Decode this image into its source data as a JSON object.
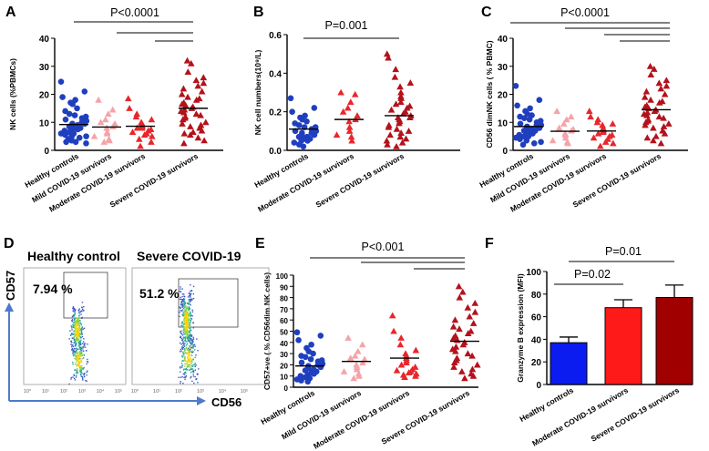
{
  "colors": {
    "healthy": "#1f3fbf",
    "mild": "#f4a3a8",
    "moderate": "#e8262b",
    "severe": "#b3121b",
    "bar_blue": "#0a1cf0",
    "bar_red": "#ff1a1a",
    "bar_dark": "#a00000",
    "axis": "#000000",
    "arrow": "#4f79c9"
  },
  "chart_data": [
    {
      "panel": "A",
      "type": "scatter",
      "ylabel": "NK cells (%PBMCs)",
      "ylim": [
        0,
        40
      ],
      "yticks": [
        "0",
        "10",
        "20",
        "30",
        "40"
      ],
      "categories": [
        "Healthy controls",
        "Mild COVID-19 survivors",
        "Moderate COVID-19 survivors",
        "Severe COVID-19 survivors"
      ],
      "markers": [
        "circle",
        "triangle",
        "triangle",
        "triangle"
      ],
      "means": [
        9.2,
        8.3,
        8.6,
        15.0
      ],
      "series": [
        {
          "name": "Healthy controls",
          "values": [
            24.5,
            21,
            19,
            18,
            17,
            16.5,
            15,
            14,
            13,
            12.5,
            12,
            11.5,
            11,
            10.5,
            10,
            9.5,
            9.5,
            9,
            9,
            8.5,
            8,
            8,
            7.5,
            7,
            7,
            6.5,
            6,
            6,
            5.5,
            5,
            5,
            4.5,
            4,
            3.5,
            3,
            3,
            2.5
          ]
        },
        {
          "name": "Mild COVID-19 survivors",
          "values": [
            18,
            14.5,
            13,
            11,
            10,
            9.5,
            8.5,
            8,
            6.5,
            6,
            5,
            4,
            3.5,
            3
          ]
        },
        {
          "name": "Moderate COVID-19 survivors",
          "values": [
            18.5,
            15,
            13,
            12,
            11,
            10,
            9.5,
            9,
            8.5,
            8,
            8,
            7.5,
            7,
            6.5,
            6,
            5.5,
            5,
            4,
            3,
            1.5
          ]
        },
        {
          "name": "Severe COVID-19 survivors",
          "values": [
            32,
            31,
            28,
            26,
            25,
            24,
            23,
            22,
            21,
            20,
            19,
            18.5,
            18,
            17,
            16.5,
            16,
            15.5,
            15,
            14.5,
            14,
            13.5,
            13,
            12.5,
            12,
            11.5,
            11,
            10,
            9.5,
            9,
            8.5,
            8,
            7,
            6.5,
            6,
            5.5,
            4.5,
            3.5,
            2.5
          ]
        }
      ],
      "annotation": "P<0.0001"
    },
    {
      "panel": "B",
      "type": "scatter",
      "ylabel": "NK cell numbers(10⁹/L)",
      "ylim": [
        0,
        0.6
      ],
      "yticks": [
        "0.0",
        "0.2",
        "0.4",
        "0.6"
      ],
      "categories": [
        "Healthy controls",
        "Moderate COVID-19 survivors",
        "Severe COVID-19 survivors"
      ],
      "markers": [
        "circle",
        "triangle",
        "triangle"
      ],
      "means": [
        0.11,
        0.16,
        0.18
      ],
      "series": [
        {
          "name": "Healthy controls",
          "values": [
            0.27,
            0.22,
            0.2,
            0.18,
            0.17,
            0.16,
            0.15,
            0.14,
            0.13,
            0.12,
            0.12,
            0.11,
            0.1,
            0.1,
            0.09,
            0.09,
            0.08,
            0.08,
            0.07,
            0.07,
            0.06,
            0.06,
            0.05,
            0.05,
            0.04,
            0.03,
            0.02
          ]
        },
        {
          "name": "Moderate COVID-19 survivors",
          "values": [
            0.3,
            0.29,
            0.25,
            0.22,
            0.2,
            0.18,
            0.16,
            0.15,
            0.12,
            0.1,
            0.08,
            0.07,
            0.05
          ]
        },
        {
          "name": "Severe COVID-19 survivors",
          "values": [
            0.5,
            0.48,
            0.42,
            0.38,
            0.35,
            0.33,
            0.3,
            0.28,
            0.27,
            0.25,
            0.24,
            0.23,
            0.22,
            0.21,
            0.2,
            0.19,
            0.18,
            0.17,
            0.17,
            0.16,
            0.15,
            0.14,
            0.13,
            0.12,
            0.11,
            0.1,
            0.09,
            0.08,
            0.07,
            0.06,
            0.05,
            0.04,
            0.03,
            0.02
          ]
        }
      ],
      "annotation": "P=0.001"
    },
    {
      "panel": "C",
      "type": "scatter",
      "ylabel": "CD56 dimNK cells ( % PBMC)",
      "ylim": [
        0,
        40
      ],
      "yticks": [
        "0",
        "10",
        "20",
        "30",
        "40"
      ],
      "categories": [
        "Healthy controls",
        "Mild COVID-19 survivors",
        "Moderate COVID-19 survivors",
        "Severe COVID-19 survivors"
      ],
      "markers": [
        "circle",
        "triangle",
        "triangle",
        "triangle"
      ],
      "means": [
        8.5,
        6.8,
        6.9,
        14.5
      ],
      "series": [
        {
          "name": "Healthy controls",
          "values": [
            23,
            18,
            16,
            15,
            14,
            13,
            12.5,
            12,
            11.5,
            11,
            10.5,
            10,
            9.5,
            9,
            9,
            8.5,
            8,
            8,
            7.5,
            7,
            7,
            6.5,
            6,
            6,
            5.5,
            5,
            5,
            4.5,
            4,
            3.5,
            3,
            2.5,
            2
          ]
        },
        {
          "name": "Mild COVID-19 survivors",
          "values": [
            14,
            12,
            11,
            9.5,
            8,
            7.5,
            7,
            6,
            5.5,
            4.5,
            3.5,
            3,
            2.5
          ]
        },
        {
          "name": "Moderate COVID-19 survivors",
          "values": [
            14,
            12,
            11,
            10,
            9.5,
            9,
            8,
            7.5,
            7,
            6.5,
            6,
            5.5,
            5,
            4.5,
            4,
            3,
            2.5,
            1.5
          ]
        },
        {
          "name": "Severe COVID-19 survivors",
          "values": [
            30,
            29,
            27,
            25,
            24,
            23,
            22,
            21,
            20,
            19,
            18,
            17.5,
            17,
            16,
            15.5,
            15,
            14.5,
            14,
            13.5,
            13,
            12.5,
            12,
            11.5,
            11,
            10.5,
            10,
            9.5,
            9,
            8.5,
            8,
            7,
            6,
            5,
            4.5,
            3.5,
            2.5
          ]
        }
      ],
      "annotation": "P<0.0001"
    },
    {
      "panel": "E",
      "type": "scatter",
      "ylabel": "CD57+ve ( % CD56dim NK cells)",
      "ylim": [
        0,
        100
      ],
      "yticks": [
        "0",
        "10",
        "20",
        "30",
        "40",
        "50",
        "60",
        "70",
        "80",
        "90",
        "100"
      ],
      "categories": [
        "Healthy controls",
        "Mild COVID-19 survivors",
        "Moderate COVID-19 survivors",
        "Severe COVID-19 survivors"
      ],
      "markers": [
        "circle",
        "triangle",
        "triangle",
        "triangle"
      ],
      "means": [
        19,
        23,
        26,
        41
      ],
      "series": [
        {
          "name": "Healthy controls",
          "values": [
            49,
            46,
            42,
            38,
            35,
            32,
            30,
            28,
            27,
            25,
            24,
            23,
            22,
            21,
            20,
            19,
            18,
            17,
            16,
            15,
            14,
            13,
            12,
            11,
            10,
            9,
            8,
            7,
            6,
            5
          ]
        },
        {
          "name": "Mild COVID-19 survivors",
          "values": [
            44,
            38,
            32,
            28,
            26,
            25,
            22,
            20,
            18,
            16,
            14,
            12,
            10,
            8
          ]
        },
        {
          "name": "Moderate COVID-19 survivors",
          "values": [
            64,
            50,
            44,
            38,
            33,
            30,
            28,
            26,
            24,
            22,
            20,
            18,
            16,
            15,
            14,
            13,
            12,
            11,
            10,
            9
          ]
        },
        {
          "name": "Severe COVID-19 survivors",
          "values": [
            90,
            85,
            80,
            75,
            71,
            67,
            63,
            60,
            57,
            54,
            52,
            50,
            48,
            46,
            44,
            42,
            40,
            38,
            36,
            34,
            32,
            30,
            28,
            26,
            24,
            22,
            20,
            18,
            16,
            14,
            12,
            10,
            8
          ]
        }
      ],
      "annotation": "P<0.001"
    },
    {
      "panel": "F",
      "type": "bar",
      "ylabel": "Granzyme B expression (MFI)",
      "ylim": [
        0,
        100
      ],
      "yticks": [
        "0",
        "20",
        "40",
        "60",
        "80",
        "100"
      ],
      "categories": [
        "Healthy controls",
        "Moderate COVID-19 survivors",
        "Severe COVID-19 survivors"
      ],
      "values": [
        37,
        68,
        77
      ],
      "errors": [
        5,
        7,
        11
      ],
      "annotations": [
        "P=0.02",
        "P=0.01"
      ]
    }
  ],
  "flow": {
    "panel": "D",
    "left_title": "Healthy control",
    "right_title": "Severe COVID-19",
    "left_pct": "7.94 %",
    "right_pct": "51.2 %",
    "yaxis": "CD57",
    "xaxis": "CD56",
    "ticks": [
      "10⁰",
      "10¹",
      "10²",
      "10³",
      "10⁴",
      "10⁵"
    ]
  }
}
